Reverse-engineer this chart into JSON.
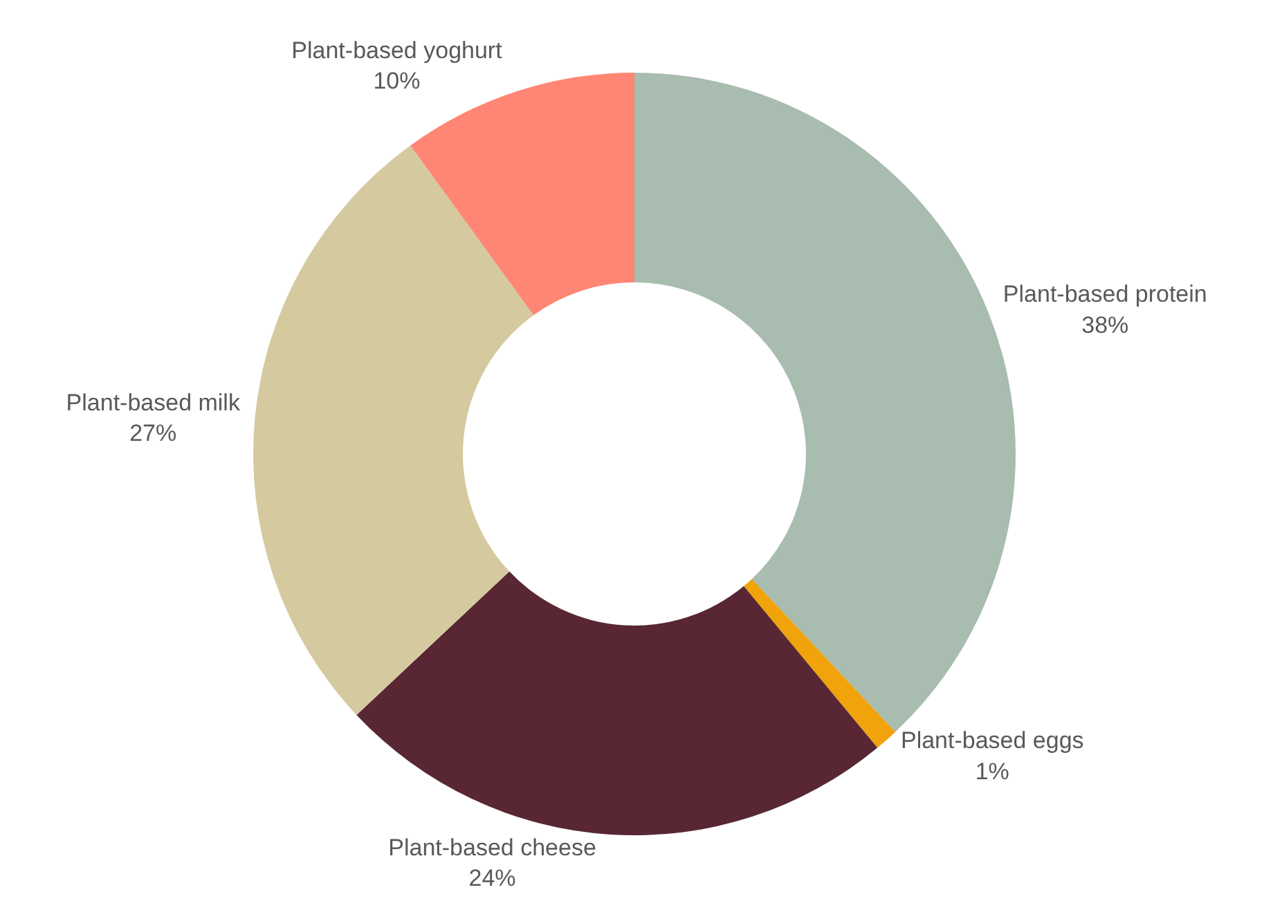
{
  "chart_data": {
    "type": "donut",
    "categories": [
      "Plant-based protein",
      "Plant-based eggs",
      "Plant-based cheese",
      "Plant-based milk",
      "Plant-based yoghurt"
    ],
    "values": [
      38,
      1,
      24,
      27,
      10
    ],
    "value_labels": [
      "38%",
      "1%",
      "24%",
      "27%",
      "10%"
    ],
    "colors": [
      "#a8bcb0",
      "#f0a30a",
      "#582733",
      "#d5ca9f",
      "#ff8674"
    ],
    "legend": false
  }
}
